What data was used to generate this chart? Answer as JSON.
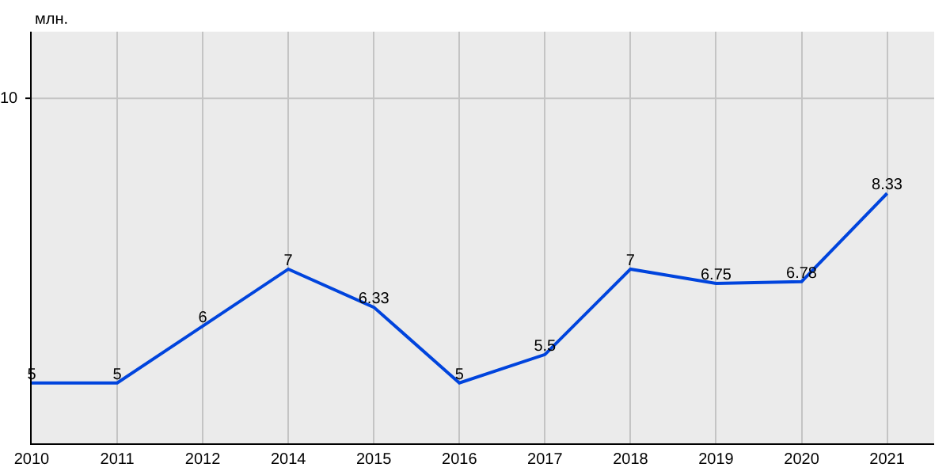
{
  "chart_data": {
    "type": "line",
    "ylabel": "млн.",
    "categories": [
      "2010",
      "2011",
      "2012",
      "2014",
      "2015",
      "2016",
      "2017",
      "2018",
      "2019",
      "2020",
      "2021"
    ],
    "series": [
      {
        "color": "#0044dd",
        "values": [
          5,
          5,
          6,
          7,
          6.33,
          5,
          5.5,
          7,
          6.75,
          6.78,
          8.33
        ]
      }
    ],
    "ylim": [
      3.94,
      11.17
    ],
    "grid": "x",
    "data_labels": true,
    "marker": "none",
    "line_style": "solid",
    "ref_lines": [
      {
        "axis": "y",
        "value": 10,
        "label": "10",
        "color": "#c4c4c4"
      }
    ]
  }
}
